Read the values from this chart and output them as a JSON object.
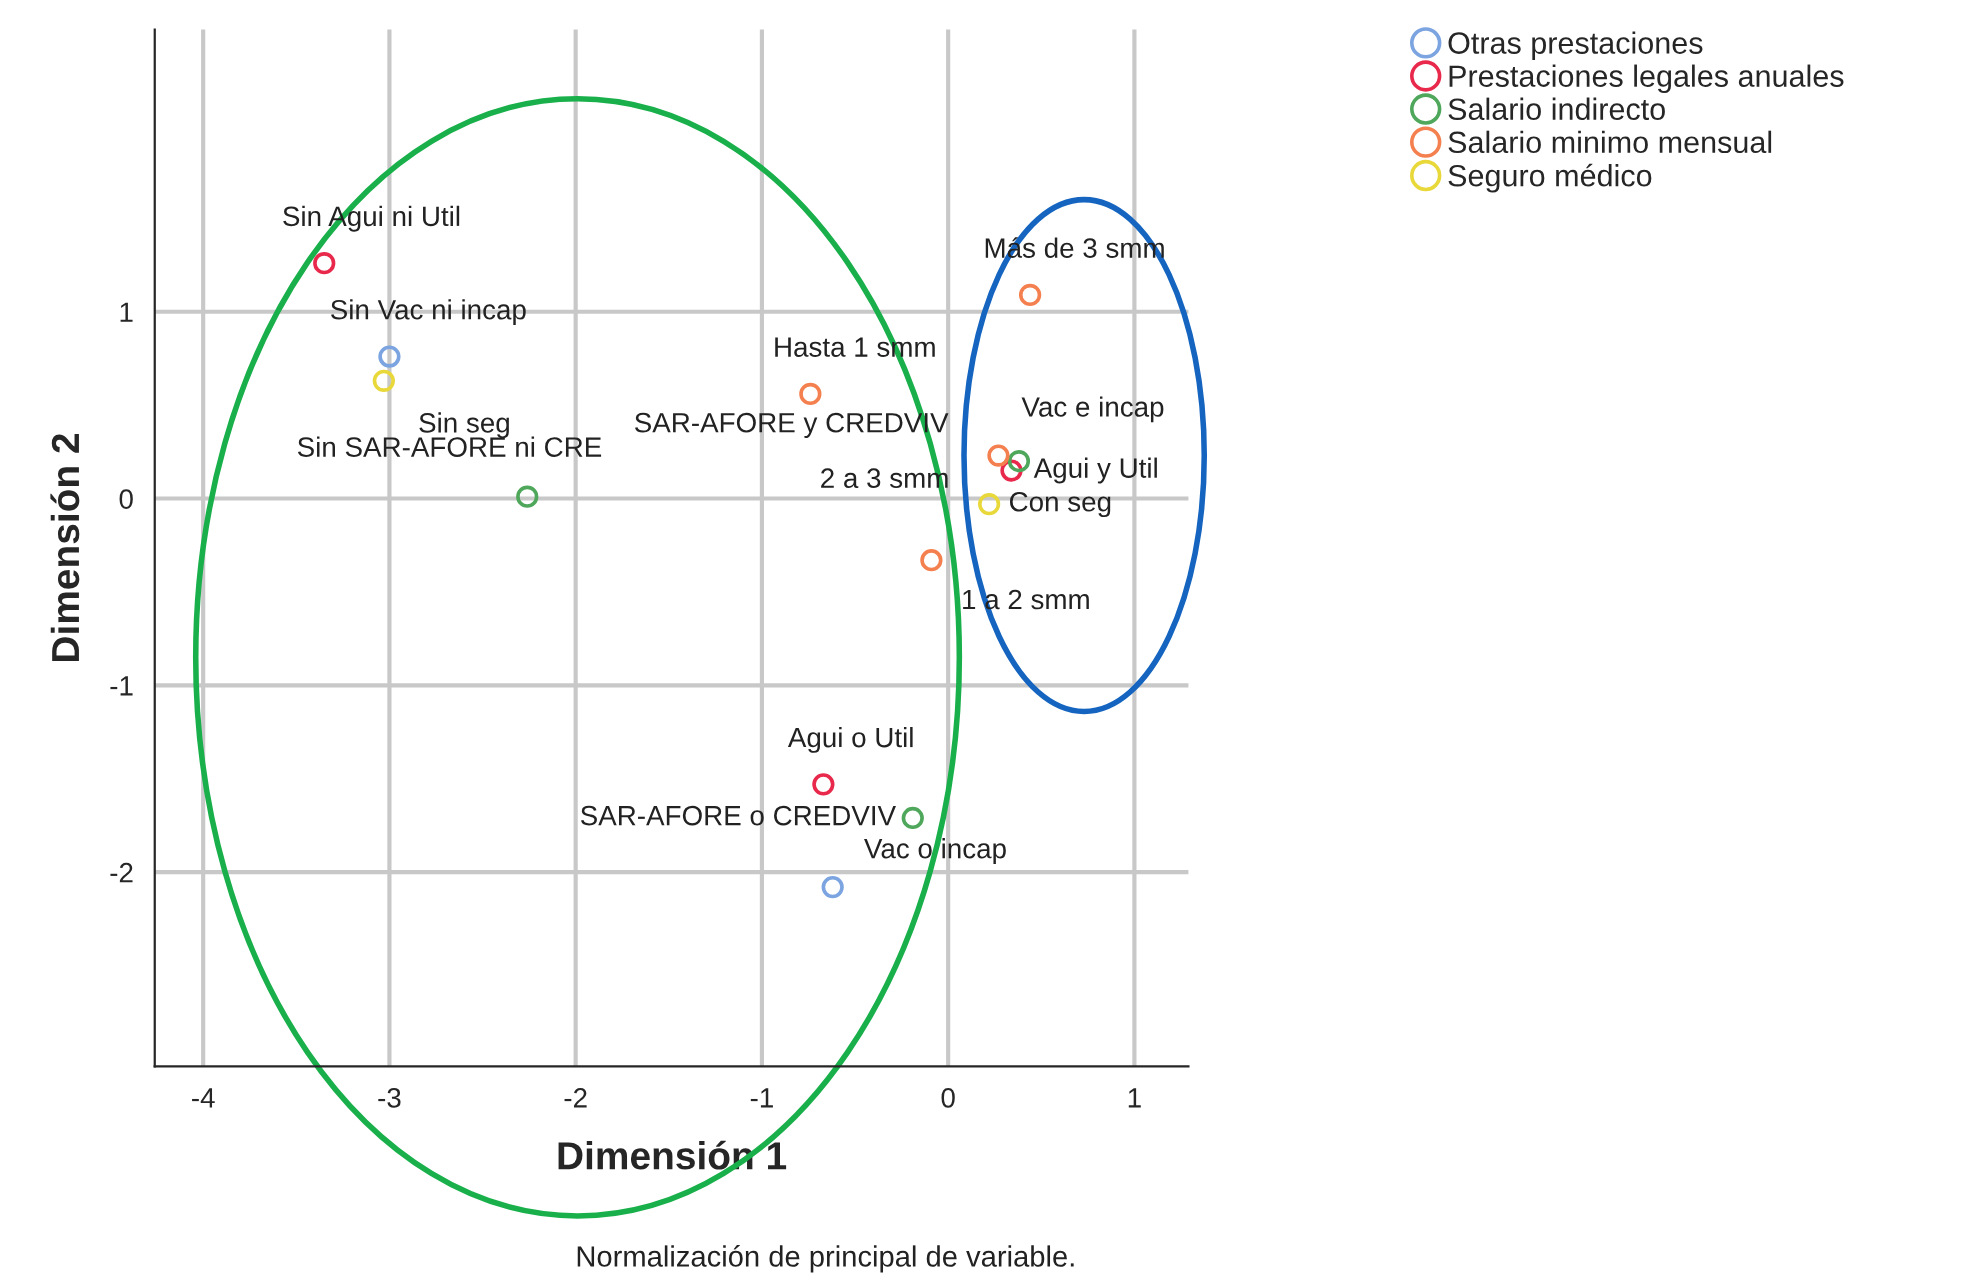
{
  "chart_data": {
    "type": "scatter",
    "xlabel": "Dimensión 1",
    "ylabel": "Dimensión 2",
    "xlim": [
      -4.26,
      1.29
    ],
    "ylim": [
      -3.04,
      2.51
    ],
    "xticks": [
      -4,
      -3,
      -2,
      -1,
      0,
      1
    ],
    "yticks": [
      -2,
      -1,
      0,
      1
    ],
    "grid": true,
    "legend": "top right",
    "marker": "circle",
    "series": [
      {
        "name": "Otras prestaciones",
        "color": "#7ba4e0",
        "x": [
          -3.0,
          null,
          -0.62
        ],
        "values": [
          0.76,
          null,
          -2.08
        ]
      },
      {
        "name": "Prestaciones legales anuales",
        "color": "#e8294c",
        "x": [
          -3.35,
          0.34,
          -0.67
        ],
        "values": [
          1.26,
          0.15,
          -1.53
        ]
      },
      {
        "name": "Salario indirecto",
        "color": "#4ea75a",
        "x": [
          -2.26,
          0.38,
          -0.19
        ],
        "values": [
          0.01,
          0.2,
          -1.71
        ]
      },
      {
        "name": "Salario minimo mensual",
        "color": "#f5804f",
        "x": [
          -0.74,
          0.44,
          0.27,
          -0.09
        ],
        "values": [
          0.56,
          1.09,
          0.23,
          -0.33
        ]
      },
      {
        "name": "Seguro médico",
        "color": "#e8d83a",
        "x": [
          -3.03,
          0.22
        ],
        "values": [
          0.63,
          -0.03
        ]
      }
    ],
    "annotations": [
      {
        "text": "Sin Vac ni incap",
        "x": -3.0,
        "y": 0.76
      },
      {
        "text": "Vac e incap",
        "x": 0.36,
        "y": 0.18
      },
      {
        "text": "Vac o incap",
        "x": -0.62,
        "y": -2.08
      },
      {
        "text": "Sin Agui ni Util",
        "x": -3.35,
        "y": 1.26
      },
      {
        "text": "Agui y Util",
        "x": 0.34,
        "y": 0.15
      },
      {
        "text": "Agui o Util",
        "x": -0.67,
        "y": -1.53
      },
      {
        "text": "Sin SAR-AFORE ni CRE",
        "x": -2.26,
        "y": 0.01
      },
      {
        "text": "SAR-AFORE y CREDVIV",
        "x": 0.38,
        "y": 0.2
      },
      {
        "text": "SAR-AFORE o CREDVIV",
        "x": -0.19,
        "y": -1.71
      },
      {
        "text": "Hasta 1 smm",
        "x": -0.74,
        "y": 0.56
      },
      {
        "text": "Más de 3 smm",
        "x": 0.44,
        "y": 1.09
      },
      {
        "text": "2 a 3 smm",
        "x": 0.27,
        "y": 0.23
      },
      {
        "text": "1 a 2 smm",
        "x": -0.09,
        "y": -0.33
      },
      {
        "text": "Sin seg",
        "x": -3.03,
        "y": 0.63
      },
      {
        "text": "Con seg",
        "x": 0.22,
        "y": -0.03
      },
      "Normalización de principal de variable."
    ]
  }
}
